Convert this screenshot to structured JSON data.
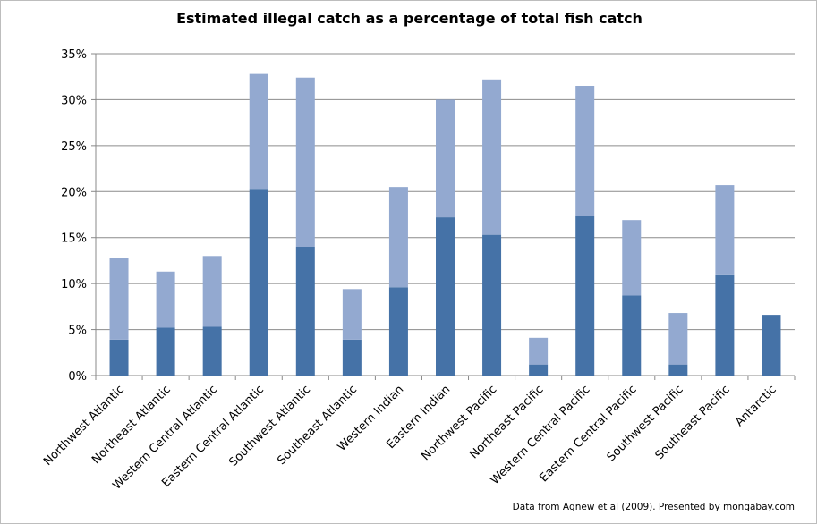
{
  "chart_data": {
    "type": "bar",
    "stacked": true,
    "title": "Estimated illegal catch as a percentage of total fish catch",
    "xlabel": "",
    "ylabel": "",
    "ylim": [
      0,
      35
    ],
    "yticks": [
      "0%",
      "5%",
      "10%",
      "15%",
      "20%",
      "25%",
      "30%",
      "35%"
    ],
    "grid": true,
    "categories": [
      "Northwest Atlantic",
      "Northeast Atlantic",
      "Western Central Atlantic",
      "Eastern Central Atlantic",
      "Southwest Atlantic",
      "Southeast Atlantic",
      "Western Indian",
      "Eastern Indian",
      "Northwest Pacific",
      "Northeast Pacific",
      "Western Central Pacific",
      "Eastern Central Pacific",
      "Southwest Pacific",
      "Southeast Pacific",
      "Antarctic"
    ],
    "series": [
      {
        "color": "#4572a7",
        "values": [
          3.9,
          5.2,
          5.3,
          20.3,
          14.0,
          3.9,
          9.6,
          17.2,
          15.3,
          1.2,
          17.4,
          8.7,
          1.2,
          11.0,
          6.6
        ]
      },
      {
        "color": "#93a9d0",
        "values": [
          8.9,
          6.1,
          7.7,
          12.5,
          18.4,
          5.5,
          10.9,
          12.8,
          16.9,
          2.9,
          14.1,
          8.2,
          5.6,
          9.7,
          0
        ]
      }
    ],
    "annotation": "Data from Agnew et al (2009). Presented by mongabay.com"
  }
}
